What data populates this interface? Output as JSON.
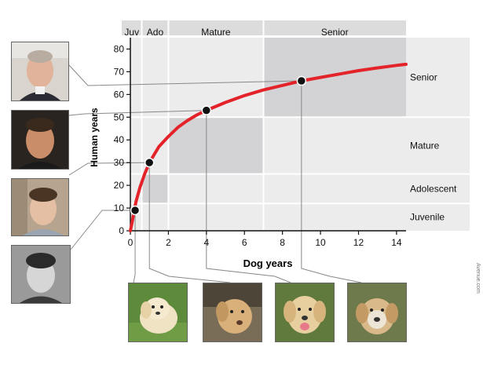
{
  "chart_data": {
    "type": "line",
    "xlabel": "Dog years",
    "ylabel": "Human years",
    "xlim": [
      0,
      14.5
    ],
    "ylim": [
      0,
      85
    ],
    "xticks": [
      0,
      2,
      4,
      6,
      8,
      10,
      12,
      14
    ],
    "yticks": [
      0,
      10,
      20,
      30,
      40,
      50,
      60,
      70,
      80
    ],
    "grid": false,
    "series": [
      {
        "color": "#e3222a",
        "x": [
          0,
          0.1,
          0.2,
          0.3,
          0.5,
          0.75,
          1,
          1.5,
          2,
          2.5,
          3,
          3.5,
          4,
          5,
          6,
          7,
          8,
          9,
          10,
          11,
          12,
          13,
          14,
          14.5
        ],
        "y": [
          0,
          4,
          9,
          13,
          19,
          25,
          30,
          37,
          41.5,
          45.5,
          48.5,
          51,
          53,
          56.5,
          59.5,
          62,
          64,
          66,
          67.5,
          69,
          70.5,
          71.7,
          72.8,
          73.3
        ]
      }
    ],
    "points": [
      {
        "x": 0.25,
        "y": 9
      },
      {
        "x": 1,
        "y": 30
      },
      {
        "x": 4,
        "y": 53
      },
      {
        "x": 9,
        "y": 66
      }
    ],
    "dog_stages": [
      {
        "label": "Juv",
        "x_start": 0,
        "x_end": 0.6
      },
      {
        "label": "Ado",
        "x_start": 0.6,
        "x_end": 2
      },
      {
        "label": "Mature",
        "x_start": 2,
        "x_end": 7
      },
      {
        "label": "Senior",
        "x_start": 7,
        "x_end": 14.5
      }
    ],
    "human_stages": [
      {
        "label": "Juvenile",
        "y_start": 0,
        "y_end": 12
      },
      {
        "label": "Adolescent",
        "y_start": 12,
        "y_end": 25
      },
      {
        "label": "Mature",
        "y_start": 25,
        "y_end": 50
      },
      {
        "label": "Senior",
        "y_start": 50,
        "y_end": 85
      }
    ],
    "colors": {
      "background": "#ececec",
      "band_light": "#e6e6e6",
      "band_dark": "#d3d3d6",
      "header_band": "#dcdcdc",
      "curve": "#e3222a",
      "connector": "#888888"
    }
  },
  "credit": "Avenue.com"
}
